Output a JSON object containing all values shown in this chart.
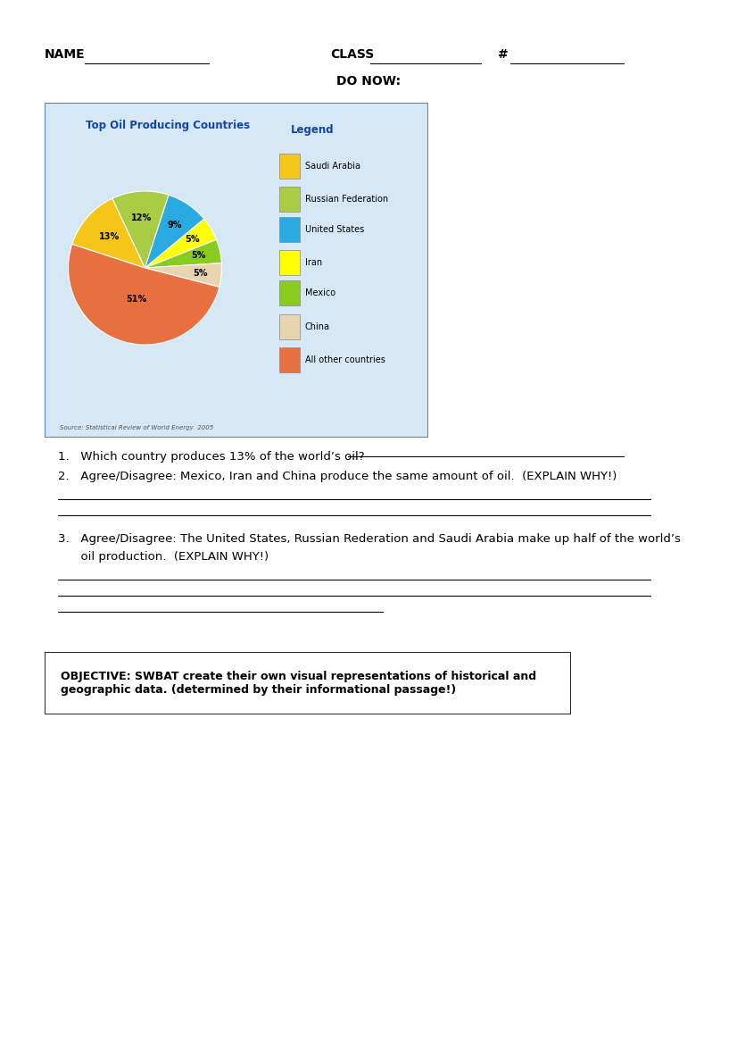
{
  "title": "Top Oil Producing Countries",
  "pie_labels": [
    "Saudi Arabia",
    "Russian Federation",
    "United States",
    "Iran",
    "Mexico",
    "China",
    "All other countries"
  ],
  "pie_values": [
    13,
    12,
    9,
    5,
    5,
    5,
    51
  ],
  "pie_colors": [
    "#F5C518",
    "#AACC44",
    "#29ABE2",
    "#FFFF00",
    "#88CC22",
    "#E8D5B0",
    "#E87040"
  ],
  "pie_label_texts": [
    "13%",
    "12%",
    "9%",
    "5%",
    "5%",
    "5%",
    "51%"
  ],
  "source_text": "Source: Statistical Review of World Energy  2005",
  "chart_bg": "#D6E8F5",
  "chart_border": "#5588BB",
  "legend_title": "Legend",
  "header_name": "NAME",
  "header_class": "CLASS",
  "header_hash": "#",
  "do_now": "DO NOW:",
  "q1": "1.   Which country produces 13% of the world’s oil?",
  "q2": "2.   Agree/Disagree: Mexico, Iran and China produce the same amount of oil.  (EXPLAIN WHY!)",
  "q3_line1": "3.   Agree/Disagree: The United States, Russian Rederation and Saudi Arabia make up half of the world’s",
  "q3_line2": "      oil production.  (EXPLAIN WHY!)",
  "objective": "OBJECTIVE: SWBAT create their own visual representations of historical and\ngeographic data. (determined by their informational passage!)"
}
